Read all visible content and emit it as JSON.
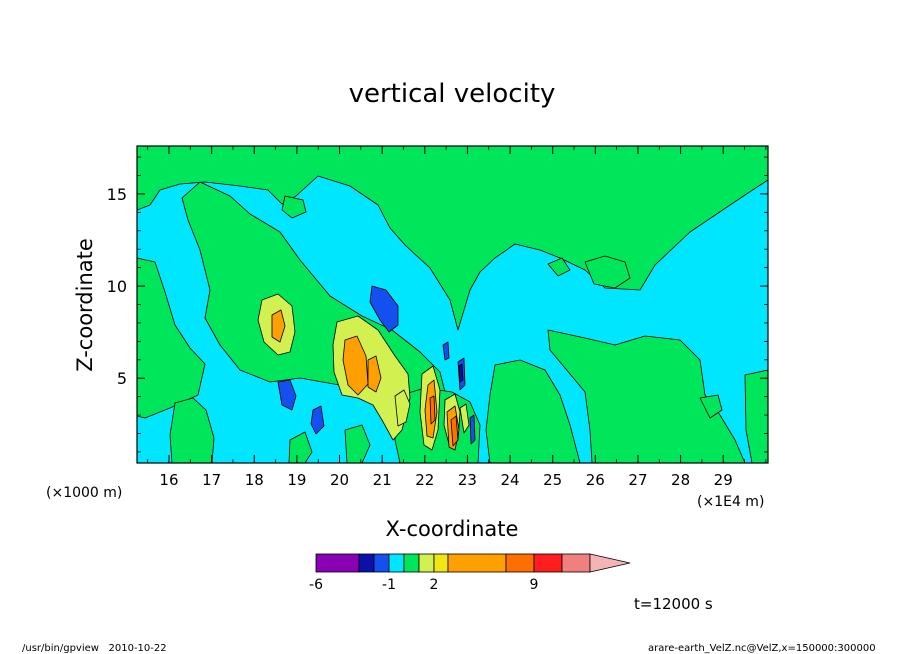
{
  "chart_data": {
    "type": "heatmap",
    "title": "vertical velocity",
    "xlabel": "X-coordinate",
    "ylabel": "Z-coordinate",
    "x_scale_note": "(×1E4 m)",
    "y_scale_note": "(×1000 m)",
    "x_range": [
      15.25,
      30.05
    ],
    "y_range": [
      0.4,
      17.6
    ],
    "x_ticks": [
      "16",
      "17",
      "18",
      "19",
      "20",
      "21",
      "22",
      "23",
      "24",
      "25",
      "26",
      "27",
      "28",
      "29"
    ],
    "x_tick_values": [
      16,
      17,
      18,
      19,
      20,
      21,
      22,
      23,
      24,
      25,
      26,
      27,
      28,
      29
    ],
    "y_ticks": [
      "5",
      "10",
      "15"
    ],
    "y_tick_values": [
      5,
      10,
      15
    ],
    "colorbar": {
      "labels": [
        {
          "text": "-6",
          "level": -6
        },
        {
          "text": "-1",
          "level": -1
        },
        {
          "text": "2",
          "level": 2
        },
        {
          "text": "9",
          "level": 9
        }
      ],
      "levels": [
        -6,
        -3,
        -2,
        -1,
        0,
        1,
        2,
        3,
        6,
        9,
        12,
        15
      ],
      "colors": [
        "#8a00b4",
        "#0a10a8",
        "#1450f0",
        "#00e6ff",
        "#00e65a",
        "#d2f050",
        "#f0e614",
        "#ffa000",
        "#ff6e00",
        "#ff1e1e",
        "#f08080",
        "#f4b4b4"
      ]
    },
    "field_colors": {
      "weak_negative": "#00e6ff",
      "weak_positive": "#00e65a",
      "moderate_negative": "#1450f0",
      "light_positive": "#d2f050",
      "moderate_positive": "#ffa000",
      "strong_positive": "#ff6e00",
      "strong_negative": "#0a10a8"
    },
    "time_label": "t=12000 s"
  },
  "footer": {
    "program": "/usr/bin/gpview   2010-10-22",
    "source": "arare-earth_VelZ.nc@VelZ,x=150000:300000"
  }
}
